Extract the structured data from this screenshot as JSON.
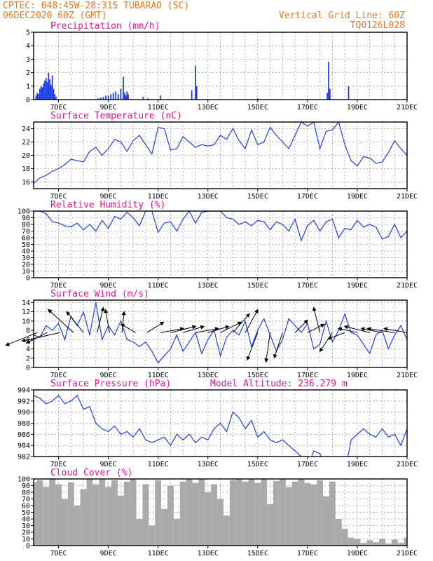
{
  "header": {
    "station": "CPTEC:   048:45W-28:31S  TUBARAO (SC)",
    "date": "06DEC2020 60Z (GMT)",
    "grid_note": "Vertical Grid Line: 60Z",
    "code": "TQ0126L028"
  },
  "x_ticks": [
    "7DEC",
    "9DEC",
    "11DEC",
    "13DEC",
    "15DEC",
    "17DEC",
    "19DEC",
    "21DEC"
  ],
  "colors": {
    "header": "#e07b22",
    "title": "#e0189b",
    "line": "#1f3fe6",
    "bar": "#1f3fe6",
    "cloud": "#aaaaaa",
    "arrow": "#000000"
  },
  "chart_data": [
    {
      "id": "precip",
      "type": "bar",
      "title": "Precipitation (mm/h)",
      "ylim": [
        0,
        5
      ],
      "yticks": [
        0,
        1,
        2,
        3,
        4,
        5
      ],
      "x_unit": "days since 06DEC 00Z",
      "x": [
        0.1,
        0.15,
        0.2,
        0.25,
        0.3,
        0.35,
        0.4,
        0.45,
        0.5,
        0.55,
        0.6,
        0.65,
        0.7,
        0.75,
        0.8,
        0.85,
        0.9,
        2.6,
        2.7,
        2.8,
        2.9,
        3.0,
        3.1,
        3.2,
        3.3,
        3.4,
        3.5,
        3.6,
        3.65,
        3.7,
        3.75,
        3.8,
        4.4,
        4.6,
        5.1,
        6.35,
        6.5,
        6.55,
        9.0,
        11.8,
        11.85,
        11.9,
        12.65
      ],
      "values": [
        0.3,
        0.5,
        0.4,
        0.8,
        1.0,
        0.9,
        1.2,
        1.4,
        1.6,
        1.3,
        2.0,
        1.5,
        1.1,
        1.8,
        0.8,
        0.4,
        0.2,
        0.1,
        0.15,
        0.2,
        0.3,
        0.3,
        0.4,
        0.5,
        0.6,
        0.4,
        0.8,
        1.7,
        0.5,
        0.3,
        0.6,
        0.4,
        0.2,
        0.1,
        0.3,
        0.7,
        2.5,
        1.0,
        0.1,
        0.5,
        2.8,
        0.8,
        1.0
      ]
    },
    {
      "id": "temp",
      "type": "line",
      "title": "Surface Temperature (nC)",
      "ylim": [
        15,
        25
      ],
      "yticks": [
        16,
        18,
        20,
        22,
        24
      ],
      "x_unit": "days since 06DEC 00Z",
      "x": [
        0,
        0.25,
        0.5,
        0.75,
        1.0,
        1.25,
        1.5,
        1.75,
        2.0,
        2.25,
        2.5,
        2.75,
        3.0,
        3.25,
        3.5,
        3.75,
        4.0,
        4.25,
        4.5,
        4.75,
        5.0,
        5.25,
        5.5,
        5.75,
        6.0,
        6.25,
        6.5,
        6.75,
        7.0,
        7.25,
        7.5,
        7.75,
        8.0,
        8.25,
        8.5,
        8.75,
        9.0,
        9.25,
        9.5,
        9.75,
        10.0,
        10.25,
        10.5,
        10.75,
        11.0,
        11.25,
        11.5,
        11.75,
        12.0,
        12.25,
        12.5,
        12.75,
        13.0,
        13.25,
        13.5,
        13.75,
        14.0,
        14.25,
        14.5,
        14.75,
        15.0
      ],
      "values": [
        15.8,
        16.6,
        17.0,
        17.6,
        18.0,
        18.6,
        19.4,
        19.2,
        19.0,
        20.6,
        21.2,
        20.0,
        21.0,
        22.4,
        22.0,
        20.6,
        22.2,
        23.0,
        21.6,
        20.2,
        24.2,
        24.0,
        20.8,
        21.0,
        22.8,
        22.0,
        21.2,
        21.6,
        21.4,
        21.6,
        23.0,
        22.4,
        24.0,
        22.2,
        21.0,
        23.8,
        21.6,
        22.0,
        24.2,
        23.0,
        22.0,
        21.0,
        23.0,
        25.0,
        24.4,
        25.0,
        21.0,
        23.6,
        23.8,
        25.0,
        21.6,
        19.2,
        18.4,
        19.8,
        19.6,
        18.8,
        19.0,
        20.4,
        22.2,
        21.0,
        20.0
      ]
    },
    {
      "id": "rh",
      "type": "line",
      "title": "Relative Humidity (%)",
      "ylim": [
        0,
        100
      ],
      "yticks": [
        0,
        10,
        20,
        30,
        40,
        50,
        60,
        70,
        80,
        90,
        100
      ],
      "x_unit": "days since 06DEC 00Z",
      "x": [
        0,
        0.25,
        0.5,
        0.75,
        1.0,
        1.25,
        1.5,
        1.75,
        2.0,
        2.25,
        2.5,
        2.75,
        3.0,
        3.25,
        3.5,
        3.75,
        4.0,
        4.25,
        4.5,
        4.75,
        5.0,
        5.25,
        5.5,
        5.75,
        6.0,
        6.25,
        6.5,
        6.75,
        7.0,
        7.25,
        7.5,
        7.75,
        8.0,
        8.25,
        8.5,
        8.75,
        9.0,
        9.25,
        9.5,
        9.75,
        10.0,
        10.25,
        10.5,
        10.75,
        11.0,
        11.25,
        11.5,
        11.75,
        12.0,
        12.25,
        12.5,
        12.75,
        13.0,
        13.25,
        13.5,
        13.75,
        14.0,
        14.25,
        14.5,
        14.75,
        15.0
      ],
      "values": [
        100,
        100,
        96,
        84,
        82,
        78,
        76,
        82,
        72,
        80,
        70,
        86,
        74,
        92,
        88,
        98,
        90,
        78,
        100,
        100,
        68,
        82,
        84,
        70,
        88,
        100,
        82,
        98,
        100,
        100,
        100,
        90,
        88,
        80,
        84,
        78,
        86,
        84,
        72,
        84,
        80,
        70,
        88,
        56,
        78,
        86,
        70,
        84,
        88,
        60,
        74,
        72,
        86,
        76,
        80,
        76,
        58,
        62,
        80,
        60,
        70
      ]
    },
    {
      "id": "wind",
      "type": "line",
      "title": "Surface Wind (m/s)",
      "ylim": [
        0,
        14.5
      ],
      "yticks": [
        0,
        2,
        4,
        6,
        8,
        10,
        12,
        14
      ],
      "x_unit": "days since 06DEC 00Z",
      "x": [
        0,
        0.25,
        0.5,
        0.75,
        1.0,
        1.25,
        1.5,
        1.75,
        2.0,
        2.25,
        2.5,
        2.75,
        3.0,
        3.25,
        3.5,
        3.75,
        4.0,
        4.25,
        4.5,
        4.75,
        5.0,
        5.25,
        5.5,
        5.75,
        6.0,
        6.25,
        6.5,
        6.75,
        7.0,
        7.25,
        7.5,
        7.75,
        8.0,
        8.25,
        8.5,
        8.75,
        9.0,
        9.25,
        9.5,
        9.75,
        10.0,
        10.25,
        10.5,
        10.75,
        11.0,
        11.25,
        11.5,
        11.75,
        12.0,
        12.25,
        12.5,
        12.75,
        13.0,
        13.25,
        13.5,
        13.75,
        14.0,
        14.25,
        14.5,
        14.75,
        15.0
      ],
      "values": [
        7,
        6.5,
        9,
        8,
        9.5,
        6,
        11,
        9,
        12,
        7,
        14,
        6,
        9,
        7,
        10,
        6,
        5.5,
        4.5,
        5.5,
        3.5,
        1.0,
        2.5,
        4.0,
        7.0,
        3.5,
        5.5,
        7.5,
        3.0,
        6.0,
        8.0,
        2.5,
        6.5,
        8.0,
        7.0,
        10.0,
        4.5,
        8.0,
        10.5,
        7.0,
        3.5,
        6.0,
        10.5,
        9.0,
        7.5,
        9.5,
        4.0,
        5.0,
        10.0,
        5.5,
        8.0,
        11.5,
        7.5,
        7.0,
        5.0,
        3.0,
        7.0,
        8.0,
        4.0,
        7.0,
        9.0,
        6.0
      ],
      "arrows": [
        {
          "x": 0.15,
          "u": -1.5,
          "v": -0.6
        },
        {
          "x": 0.55,
          "u": -1.0,
          "v": -0.5
        },
        {
          "x": 1.05,
          "u": -1.8,
          "v": -0.4
        },
        {
          "x": 1.6,
          "u": -1.2,
          "v": 1.1
        },
        {
          "x": 2.0,
          "u": -0.8,
          "v": 1.0
        },
        {
          "x": 2.55,
          "u": 0.3,
          "v": 1.2
        },
        {
          "x": 3.05,
          "u": -0.2,
          "v": 1.1
        },
        {
          "x": 3.55,
          "u": 0.1,
          "v": 1.0
        },
        {
          "x": 4.1,
          "u": -0.7,
          "v": 0.4
        },
        {
          "x": 4.55,
          "u": 0.8,
          "v": 0.5
        },
        {
          "x": 5.1,
          "u": 1.1,
          "v": 0.2
        },
        {
          "x": 5.5,
          "u": 1.2,
          "v": 0.3
        },
        {
          "x": 6.0,
          "u": 1.0,
          "v": 0.3
        },
        {
          "x": 6.5,
          "u": 1.1,
          "v": 0.2
        },
        {
          "x": 7.0,
          "u": 1.0,
          "v": 0.3
        },
        {
          "x": 7.5,
          "u": 1.0,
          "v": 0.5
        },
        {
          "x": 8.0,
          "u": 0.8,
          "v": 0.9
        },
        {
          "x": 8.5,
          "u": 0.6,
          "v": 1.1
        },
        {
          "x": 9.0,
          "u": -0.5,
          "v": -1.3
        },
        {
          "x": 9.5,
          "u": -0.2,
          "v": -1.4
        },
        {
          "x": 10.0,
          "u": -0.4,
          "v": -1.2
        },
        {
          "x": 10.5,
          "u": 0.6,
          "v": 0.6
        },
        {
          "x": 11.0,
          "u": 0.8,
          "v": 0.4
        },
        {
          "x": 11.5,
          "u": -0.3,
          "v": 1.2
        },
        {
          "x": 12.0,
          "u": -0.6,
          "v": -0.9
        },
        {
          "x": 12.5,
          "u": -0.8,
          "v": -0.3
        },
        {
          "x": 13.0,
          "u": -0.9,
          "v": 0.2
        },
        {
          "x": 13.5,
          "u": -1.2,
          "v": 0.3
        },
        {
          "x": 14.0,
          "u": -1.0,
          "v": 0.2
        },
        {
          "x": 14.5,
          "u": -1.3,
          "v": 0.2
        },
        {
          "x": 15.0,
          "u": -1.1,
          "v": 0.2
        }
      ]
    },
    {
      "id": "press",
      "type": "line",
      "title": "Surface Pressure (hPa)",
      "annotation": "Model Altitude: 236.279 m",
      "ylim": [
        982,
        994
      ],
      "yticks": [
        982,
        984,
        986,
        988,
        990,
        992,
        994
      ],
      "x_unit": "days since 06DEC 00Z",
      "x": [
        0,
        0.25,
        0.5,
        0.75,
        1.0,
        1.25,
        1.5,
        1.75,
        2.0,
        2.25,
        2.5,
        2.75,
        3.0,
        3.25,
        3.5,
        3.75,
        4.0,
        4.25,
        4.5,
        4.75,
        5.0,
        5.25,
        5.5,
        5.75,
        6.0,
        6.25,
        6.5,
        6.75,
        7.0,
        7.25,
        7.5,
        7.75,
        8.0,
        8.25,
        8.5,
        8.75,
        9.0,
        9.25,
        9.5,
        9.75,
        10.0,
        10.25,
        10.5,
        10.75,
        11.0,
        11.25,
        11.5,
        11.75,
        12.0,
        12.25,
        12.5,
        12.75,
        13.0,
        13.25,
        13.5,
        13.75,
        14.0,
        14.25,
        14.5,
        14.75,
        15.0
      ],
      "values": [
        993,
        992.5,
        991.5,
        992,
        993,
        991.5,
        992,
        993,
        990.5,
        991,
        988,
        987,
        986.5,
        987.5,
        986,
        986.5,
        985.5,
        987,
        985,
        984.5,
        985,
        985.5,
        984,
        986,
        985,
        986,
        984.5,
        985.5,
        985,
        987,
        988,
        986.5,
        990,
        989,
        987,
        988.5,
        985.5,
        986.5,
        985,
        984.5,
        985,
        984,
        983,
        982,
        980,
        983,
        982.5,
        980,
        981,
        980,
        979,
        985,
        986,
        987,
        986,
        985.5,
        987,
        985.5,
        986,
        984,
        987
      ]
    },
    {
      "id": "cloud",
      "type": "area",
      "title": "Cloud Cover (%)",
      "ylim": [
        0,
        100
      ],
      "yticks": [
        0,
        10,
        20,
        30,
        40,
        50,
        60,
        70,
        80,
        90,
        100
      ],
      "x_unit": "days since 06DEC 00Z",
      "x": [
        0,
        0.25,
        0.5,
        0.75,
        1.0,
        1.25,
        1.5,
        1.75,
        2.0,
        2.25,
        2.5,
        2.75,
        3.0,
        3.25,
        3.5,
        3.75,
        4.0,
        4.25,
        4.5,
        4.75,
        5.0,
        5.25,
        5.5,
        5.75,
        6.0,
        6.25,
        6.5,
        6.75,
        7.0,
        7.25,
        7.5,
        7.75,
        8.0,
        8.25,
        8.5,
        8.75,
        9.0,
        9.25,
        9.5,
        9.75,
        10.0,
        10.25,
        10.5,
        10.75,
        11.0,
        11.25,
        11.5,
        11.75,
        12.0,
        12.25,
        12.5,
        12.75,
        13.0,
        13.25,
        13.5,
        13.75,
        14.0,
        14.25,
        14.5,
        14.75,
        15.0
      ],
      "values": [
        95,
        98,
        88,
        100,
        92,
        70,
        95,
        60,
        85,
        100,
        92,
        100,
        88,
        98,
        75,
        96,
        100,
        40,
        92,
        30,
        98,
        55,
        90,
        40,
        96,
        100,
        94,
        100,
        80,
        92,
        70,
        45,
        98,
        100,
        96,
        100,
        94,
        100,
        62,
        97,
        100,
        88,
        96,
        100,
        94,
        92,
        98,
        74,
        96,
        40,
        25,
        12,
        10,
        4,
        8,
        5,
        10,
        3,
        9,
        4,
        12
      ]
    }
  ]
}
